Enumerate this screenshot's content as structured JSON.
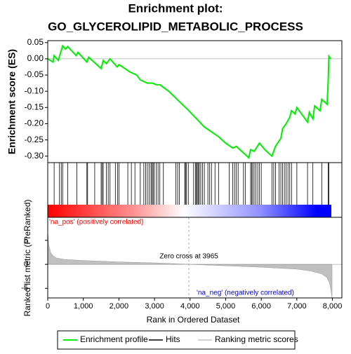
{
  "chart_data": {
    "type": "enrichment",
    "title": "Enrichment plot:",
    "subtitle": "GO_GLYCEROLIPID_METABOLIC_PROCESS",
    "ylabel": "Enrichment score (ES)",
    "y2label": "Ranked list metric (PreRanked)",
    "xlabel": "Rank in Ordered Dataset",
    "annotation": "Zero cross at 3965",
    "zero_cross": 3965,
    "pos_label": "'na_pos' (positively correlated)",
    "neg_label": "'na_neg' (negatively correlated)",
    "xlim": [
      0,
      8265
    ],
    "xticks": [
      0,
      {
        "value": 1000,
        "label": "1,000"
      },
      {
        "value": 2000,
        "label": "2,000"
      },
      {
        "value": 3000,
        "label": "3,000"
      },
      {
        "value": 4000,
        "label": "4,000"
      },
      {
        "value": 5000,
        "label": "5,000"
      },
      {
        "value": 6000,
        "label": "6,000"
      },
      {
        "value": 7000,
        "label": "7,000"
      },
      {
        "value": 8000,
        "label": "8,000"
      }
    ],
    "ylim": [
      -0.32,
      0.056
    ],
    "yticks": [
      0.05,
      {
        "value": 0,
        "label": "0.00"
      },
      -0.05,
      {
        "value": -0.1,
        "label": "-0.10"
      },
      -0.15,
      {
        "value": -0.2,
        "label": "-0.20"
      },
      -0.25,
      {
        "value": -0.3,
        "label": "-0.30"
      }
    ],
    "y2lim": [
      -7,
      9.8
    ],
    "y2ticks": [
      5,
      0,
      -5
    ],
    "series": [
      {
        "name": "Enrichment profile",
        "color": "#00ee00",
        "x": [
          0,
          150,
          180,
          300,
          350,
          420,
          500,
          560,
          800,
          850,
          1100,
          1150,
          1500,
          1560,
          1650,
          1750,
          1950,
          2000,
          2100,
          2300,
          2400,
          2500,
          2600,
          2800,
          2950,
          3050,
          3150,
          3400,
          3965,
          4400,
          4800,
          5000,
          5200,
          5300,
          5500,
          5650,
          5700,
          5800,
          5950,
          6100,
          6300,
          6400,
          6550,
          6600,
          6700,
          6800,
          6850,
          6950,
          7000,
          7300,
          7350,
          7450,
          7500,
          7650,
          7700,
          7850,
          7880,
          7900,
          7950
        ],
        "values": [
          0,
          -0.01,
          0.01,
          -0.005,
          0.015,
          0.04,
          0.03,
          0.038,
          0.01,
          0.02,
          -0.01,
          0.005,
          -0.03,
          -0.005,
          -0.015,
          0,
          -0.025,
          -0.018,
          -0.025,
          -0.04,
          -0.045,
          -0.05,
          -0.065,
          -0.075,
          -0.075,
          -0.08,
          -0.08,
          -0.1,
          -0.16,
          -0.21,
          -0.24,
          -0.26,
          -0.275,
          -0.27,
          -0.29,
          -0.305,
          -0.28,
          -0.285,
          -0.26,
          -0.28,
          -0.3,
          -0.27,
          -0.245,
          -0.215,
          -0.2,
          -0.18,
          -0.16,
          -0.17,
          -0.15,
          -0.195,
          -0.165,
          -0.185,
          -0.145,
          -0.16,
          -0.125,
          -0.14,
          -0.07,
          0.008,
          0
        ]
      },
      {
        "name": "Hits",
        "color": "#000000",
        "values": [
          180,
          330,
          380,
          420,
          560,
          820,
          1100,
          1120,
          1320,
          1500,
          1530,
          1560,
          1650,
          1700,
          1750,
          1900,
          1960,
          2000,
          2250,
          2350,
          2450,
          2600,
          2700,
          2750,
          2800,
          2850,
          2900,
          2930,
          2960,
          2990,
          3050,
          3100,
          3150,
          3250,
          3600,
          3650,
          3700,
          3850,
          3870,
          3900,
          3950,
          4100,
          4150,
          4180,
          4200,
          4230,
          4260,
          4300,
          4350,
          4400,
          4500,
          4550,
          4600,
          4700,
          4800,
          5100,
          5200,
          5250,
          5300,
          5350,
          5500,
          5550,
          5700,
          5730,
          5760,
          5800,
          5850,
          5900,
          5950,
          6000,
          6300,
          6350,
          6400,
          6500,
          6550,
          6600,
          6650,
          6700,
          6750,
          6800,
          6850,
          7000,
          7300,
          7450,
          7700,
          7880,
          7900
        ]
      },
      {
        "name": "Ranking metric scores",
        "color": "#c0c0c0",
        "axis": "y2",
        "x": [
          0,
          30,
          80,
          150,
          250,
          500,
          1000,
          2000,
          3000,
          3965,
          5000,
          6000,
          6500,
          7000,
          7400,
          7700,
          7850,
          7920,
          7960,
          7990
        ],
        "values": [
          7,
          4,
          2.5,
          1.8,
          1.3,
          1,
          0.8,
          0.5,
          0.3,
          0,
          -0.3,
          -0.6,
          -0.8,
          -1,
          -1.4,
          -2,
          -2.8,
          -4,
          -5.5,
          -7
        ]
      }
    ]
  }
}
